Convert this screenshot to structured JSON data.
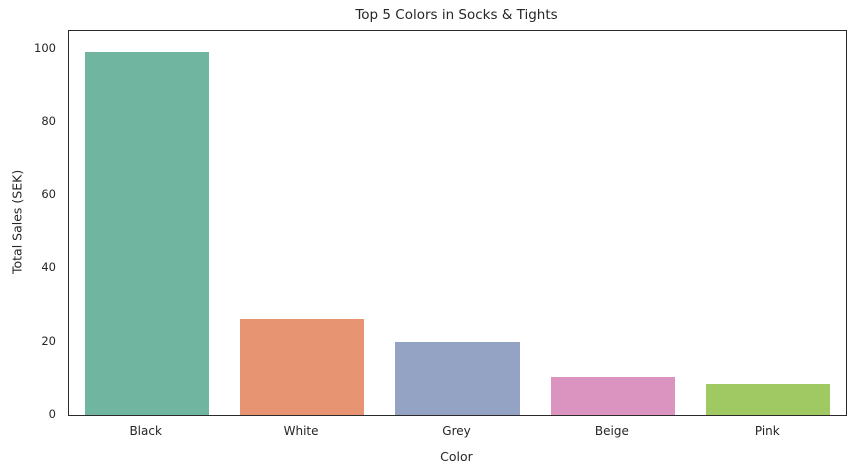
{
  "figure": {
    "background_color": "#ffffff",
    "text_color": "#262626",
    "spine_color": "#2b2b2b"
  },
  "chart_data": {
    "type": "bar",
    "title": "Top 5 Colors in Socks & Tights",
    "xlabel": "Color",
    "ylabel": "Total Sales (SEK)",
    "categories": [
      "Black",
      "White",
      "Grey",
      "Beige",
      "Pink"
    ],
    "values": [
      99,
      26.2,
      20,
      10.3,
      8.5
    ],
    "bar_colors": [
      "#6fb5a0",
      "#e79472",
      "#94a3c4",
      "#db94c0",
      "#a0c964"
    ],
    "yticks": [
      0,
      20,
      40,
      60,
      80,
      100
    ],
    "ylim": [
      0,
      104.8
    ],
    "grid": false,
    "legend": "none",
    "bar_width_fraction": 0.8
  }
}
